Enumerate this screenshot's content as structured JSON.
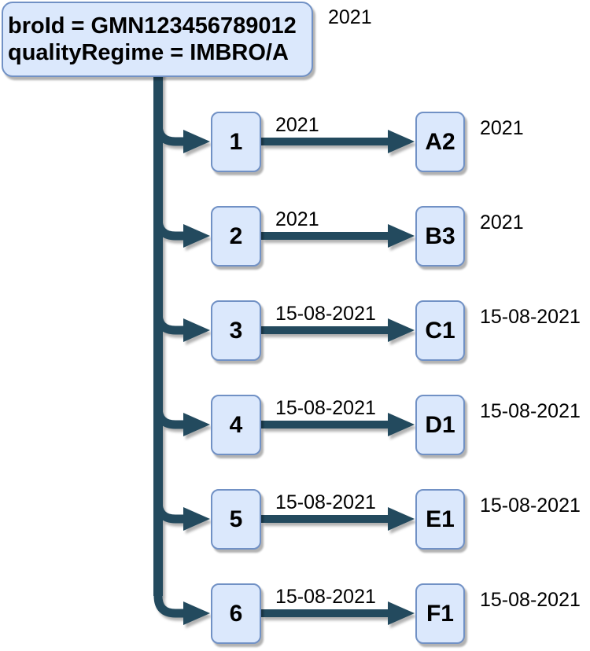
{
  "root_node": {
    "line1": "broId = GMN123456789012",
    "line2": "qualityRegime = IMBRO/A",
    "year_label": "2021"
  },
  "rows": [
    {
      "source": "1",
      "edge_label": "2021",
      "target": "A2",
      "date_label": "2021"
    },
    {
      "source": "2",
      "edge_label": "2021",
      "target": "B3",
      "date_label": "2021"
    },
    {
      "source": "3",
      "edge_label": "15-08-2021",
      "target": "C1",
      "date_label": "15-08-2021"
    },
    {
      "source": "4",
      "edge_label": "15-08-2021",
      "target": "D1",
      "date_label": "15-08-2021"
    },
    {
      "source": "5",
      "edge_label": "15-08-2021",
      "target": "E1",
      "date_label": "15-08-2021"
    },
    {
      "source": "6",
      "edge_label": "15-08-2021",
      "target": "F1",
      "date_label": "15-08-2021"
    }
  ],
  "colors": {
    "connector": "#234a5e",
    "node_fill": "#dbe8fc",
    "node_border": "#7191c5",
    "text": "#000000"
  }
}
